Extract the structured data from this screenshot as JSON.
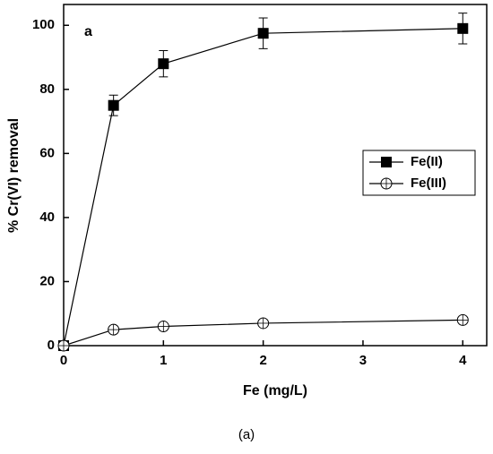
{
  "chart_data": {
    "type": "line",
    "annotation": "a",
    "caption": "(a)",
    "xlabel": "Fe (mg/L)",
    "ylabel": "% Cr(VI) removal",
    "xlim": [
      0,
      4.24
    ],
    "xticks": [
      0,
      1,
      2,
      3,
      4
    ],
    "ylim": [
      0,
      106.5
    ],
    "yticks": [
      0,
      20,
      40,
      60,
      80,
      100
    ],
    "legend": "right",
    "x": [
      0,
      0.5,
      1,
      2,
      4
    ],
    "series": [
      {
        "name": "Fe(II)",
        "color": "#000000",
        "marker": "square",
        "values": [
          0,
          75,
          88,
          97.5,
          99
        ],
        "errors": [
          0,
          3.2,
          4.1,
          4.8,
          4.8
        ]
      },
      {
        "name": "Fe(III)",
        "color": "#000000",
        "marker": "circle",
        "values": [
          0,
          5,
          6,
          7,
          8
        ]
      }
    ]
  }
}
